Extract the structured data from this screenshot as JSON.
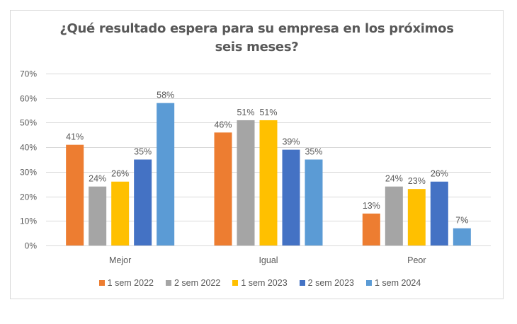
{
  "chart_data": {
    "type": "bar",
    "title": "¿Qué resultado espera para su empresa en los próximos seis meses?",
    "title_lines": [
      "¿Qué resultado espera para su empresa en los próximos",
      "seis meses?"
    ],
    "xlabel": "",
    "ylabel": "",
    "categories": [
      "Mejor",
      "Igual",
      "Peor"
    ],
    "ylim": [
      0,
      70
    ],
    "yticks": [
      0,
      10,
      20,
      30,
      40,
      50,
      60,
      70
    ],
    "ytick_labels": [
      "0%",
      "10%",
      "20%",
      "30%",
      "40%",
      "50%",
      "60%",
      "70%"
    ],
    "grid": true,
    "legend_position": "bottom",
    "value_suffix": "%",
    "series": [
      {
        "name": "1 sem 2022",
        "color": "#ED7D31",
        "values": [
          41,
          46,
          13
        ]
      },
      {
        "name": "2 sem 2022",
        "color": "#A5A5A5",
        "values": [
          24,
          51,
          24
        ]
      },
      {
        "name": "1 sem 2023",
        "color": "#FFC000",
        "values": [
          26,
          51,
          23
        ]
      },
      {
        "name": "2 sem 2023",
        "color": "#4472C4",
        "values": [
          35,
          39,
          26
        ]
      },
      {
        "name": "1 sem 2024",
        "color": "#5B9BD5",
        "values": [
          58,
          35,
          7
        ]
      }
    ]
  }
}
